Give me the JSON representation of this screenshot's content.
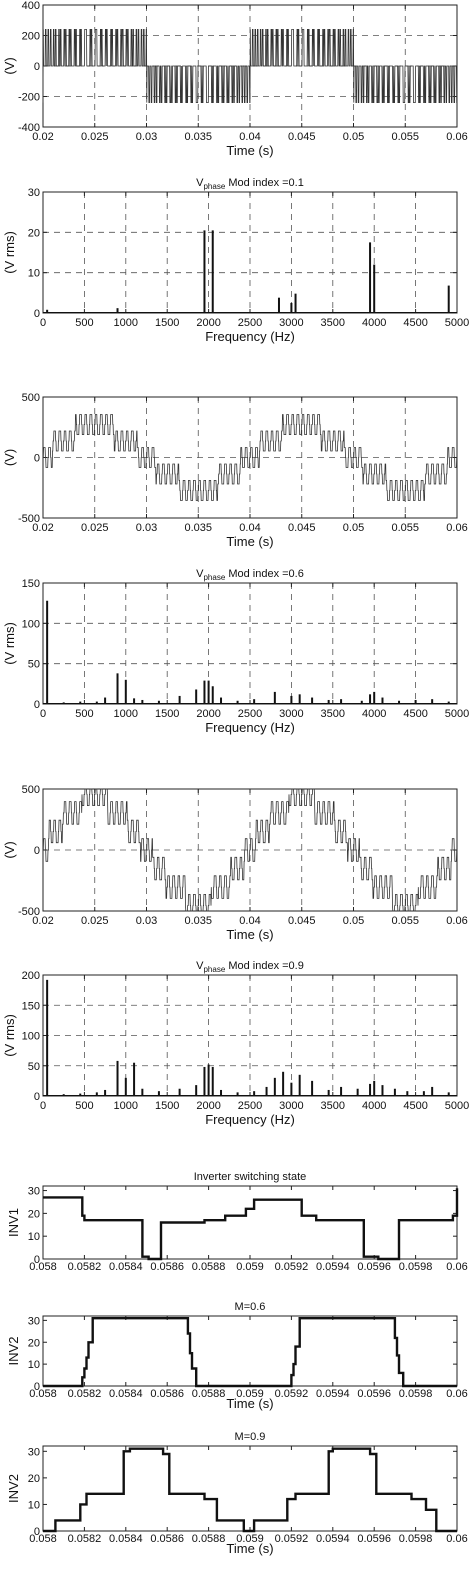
{
  "chart_data": [
    {
      "type": "line",
      "id": "w1",
      "title": "",
      "xlabel": "Time (s)",
      "ylabel": "(V)",
      "xlim": [
        0.02,
        0.06
      ],
      "ylim": [
        -400,
        400
      ],
      "xticks": [
        0.02,
        0.025,
        0.03,
        0.035,
        0.04,
        0.045,
        0.05,
        0.055,
        0.06
      ],
      "xtick_labels": [
        "0.02",
        "0.025",
        "0.03",
        "0.035",
        "0.04",
        "0.045",
        "0.05",
        "0.055",
        "0.06"
      ],
      "yticks": [
        -400,
        -200,
        0,
        200,
        400
      ],
      "ytick_labels": [
        "-400",
        "-200",
        "0",
        "200",
        "400"
      ],
      "grid": true,
      "series": [
        {
          "waveform": "pwm-phase-voltage",
          "fundamental_hz": 50,
          "mod_index": 0.1,
          "peak": 240
        }
      ]
    },
    {
      "type": "bar",
      "id": "s1",
      "title": "Mod index =0.1",
      "title_prefix": "V",
      "title_sub": "phase",
      "xlabel": "Frequency (Hz)",
      "ylabel": "(V rms)",
      "xlim": [
        0,
        5000
      ],
      "ylim": [
        0,
        30
      ],
      "xticks": [
        0,
        500,
        1000,
        1500,
        2000,
        2500,
        3000,
        3500,
        4000,
        4500,
        5000
      ],
      "xtick_labels": [
        "0",
        "500",
        "1000",
        "1500",
        "2000",
        "2500",
        "3000",
        "3500",
        "4000",
        "4500",
        "5000"
      ],
      "yticks": [
        0,
        10,
        20,
        30
      ],
      "ytick_labels": [
        "0",
        "10",
        "20",
        "30"
      ],
      "grid": true,
      "x": [
        50,
        900,
        1950,
        2050,
        2850,
        3000,
        3050,
        3950,
        4000,
        4900
      ],
      "values": [
        0.8,
        1.2,
        20.5,
        20.5,
        3.8,
        2.5,
        4.8,
        17.5,
        12,
        6.8
      ]
    },
    {
      "type": "line",
      "id": "w2",
      "title": "",
      "xlabel": "Time (s)",
      "ylabel": "(V)",
      "xlim": [
        0.02,
        0.06
      ],
      "ylim": [
        -500,
        500
      ],
      "xticks": [
        0.02,
        0.025,
        0.03,
        0.035,
        0.04,
        0.045,
        0.05,
        0.055,
        0.06
      ],
      "xtick_labels": [
        "0.02",
        "0.025",
        "0.03",
        "0.035",
        "0.04",
        "0.045",
        "0.05",
        "0.055",
        "0.06"
      ],
      "yticks": [
        -500,
        0,
        500
      ],
      "ytick_labels": [
        "-500",
        "0",
        "500"
      ],
      "grid": true,
      "series": [
        {
          "waveform": "pwm-phase-voltage",
          "fundamental_hz": 50,
          "mod_index": 0.6,
          "peak": 430
        }
      ]
    },
    {
      "type": "bar",
      "id": "s2",
      "title": "Mod index =0.6",
      "title_prefix": "V",
      "title_sub": "phase",
      "xlabel": "Frequency (Hz)",
      "ylabel": "(V rms)",
      "xlim": [
        0,
        5000
      ],
      "ylim": [
        0,
        150
      ],
      "xticks": [
        0,
        500,
        1000,
        1500,
        2000,
        2500,
        3000,
        3500,
        4000,
        4500,
        5000
      ],
      "xtick_labels": [
        "0",
        "500",
        "1000",
        "1500",
        "2000",
        "2500",
        "3000",
        "3500",
        "4000",
        "4500",
        "5000"
      ],
      "yticks": [
        0,
        50,
        100,
        150
      ],
      "ytick_labels": [
        "0",
        "50",
        "100",
        "150"
      ],
      "grid": true,
      "x": [
        50,
        250,
        450,
        650,
        750,
        900,
        1000,
        1100,
        1200,
        1400,
        1650,
        1850,
        1950,
        2000,
        2050,
        2150,
        2350,
        2550,
        2800,
        3000,
        3100,
        3250,
        3450,
        3600,
        3850,
        3950,
        4000,
        4100,
        4300,
        4500,
        4700,
        4900
      ],
      "values": [
        128,
        2,
        3,
        3,
        8,
        38,
        30,
        7,
        5,
        4,
        10,
        18,
        29,
        29,
        22,
        8,
        4,
        6,
        15,
        10,
        12,
        8,
        5,
        6,
        4,
        12,
        15,
        8,
        4,
        5,
        6,
        3
      ]
    },
    {
      "type": "line",
      "id": "w3",
      "title": "",
      "xlabel": "Time (s)",
      "ylabel": "(V)",
      "xlim": [
        0.02,
        0.06
      ],
      "ylim": [
        -500,
        500
      ],
      "xticks": [
        0.02,
        0.025,
        0.03,
        0.035,
        0.04,
        0.045,
        0.05,
        0.055,
        0.06
      ],
      "xtick_labels": [
        "0.02",
        "0.025",
        "0.03",
        "0.035",
        "0.04",
        "0.045",
        "0.05",
        "0.055",
        "0.06"
      ],
      "yticks": [
        -500,
        0,
        500
      ],
      "ytick_labels": [
        "-500",
        "0",
        "500"
      ],
      "grid": true,
      "series": [
        {
          "waveform": "pwm-phase-voltage",
          "fundamental_hz": 50,
          "mod_index": 0.9,
          "peak": 480
        }
      ]
    },
    {
      "type": "bar",
      "id": "s3",
      "title": "Mod index =0.9",
      "title_prefix": "V",
      "title_sub": "phase",
      "xlabel": "Frequency (Hz)",
      "ylabel": "(V rms)",
      "xlim": [
        0,
        5000
      ],
      "ylim": [
        0,
        200
      ],
      "xticks": [
        0,
        500,
        1000,
        1500,
        2000,
        2500,
        3000,
        3500,
        4000,
        4500,
        5000
      ],
      "xtick_labels": [
        "0",
        "500",
        "1000",
        "1500",
        "2000",
        "2500",
        "3000",
        "3500",
        "4000",
        "4500",
        "5000"
      ],
      "yticks": [
        0,
        50,
        100,
        150,
        200
      ],
      "ytick_labels": [
        "0",
        "50",
        "100",
        "150",
        "200"
      ],
      "grid": true,
      "x": [
        50,
        250,
        450,
        650,
        750,
        900,
        1000,
        1100,
        1200,
        1400,
        1650,
        1850,
        1950,
        2000,
        2050,
        2150,
        2350,
        2550,
        2700,
        2800,
        2900,
        3000,
        3100,
        3250,
        3450,
        3600,
        3800,
        3950,
        4000,
        4100,
        4250,
        4400,
        4600,
        4700,
        4900
      ],
      "values": [
        192,
        3,
        4,
        6,
        10,
        58,
        30,
        55,
        12,
        8,
        12,
        18,
        48,
        52,
        48,
        10,
        6,
        8,
        15,
        30,
        40,
        22,
        35,
        25,
        10,
        15,
        12,
        20,
        25,
        18,
        12,
        8,
        8,
        15,
        6
      ]
    },
    {
      "type": "line",
      "id": "i1",
      "title": "Inverter switching state",
      "xlabel": "",
      "ylabel": "INV1",
      "xlim": [
        0.058,
        0.06
      ],
      "ylim": [
        0,
        32
      ],
      "xticks": [
        0.058,
        0.0582,
        0.0584,
        0.0586,
        0.0588,
        0.059,
        0.0592,
        0.0594,
        0.0596,
        0.0598,
        0.06
      ],
      "xtick_labels": [
        "0.058",
        "0.0582",
        "0.0584",
        "0.0586",
        "0.0588",
        "0.059",
        "0.0592",
        "0.0594",
        "0.0596",
        "0.0598",
        "0.06"
      ],
      "yticks": [
        0,
        10,
        20,
        30
      ],
      "ytick_labels": [
        "0",
        "10",
        "20",
        "30"
      ],
      "grid": false,
      "series": [
        {
          "x": [
            0.058,
            0.05818,
            0.05819,
            0.0582,
            0.05848,
            0.05851,
            0.05857,
            0.05878,
            0.05888,
            0.05898,
            0.05902,
            0.05925,
            0.05932,
            0.05955,
            0.05962,
            0.05972,
            0.05998,
            0.06
          ],
          "y": [
            27,
            27,
            19,
            17,
            1,
            0,
            16,
            17,
            19,
            22,
            26,
            19,
            17,
            1,
            0,
            17,
            19,
            31
          ]
        }
      ]
    },
    {
      "type": "line",
      "id": "i2",
      "title": "M=0.6",
      "xlabel": "Time (s)",
      "ylabel": "INV2",
      "xlim": [
        0.058,
        0.06
      ],
      "ylim": [
        0,
        32
      ],
      "xticks": [
        0.058,
        0.0582,
        0.0584,
        0.0586,
        0.0588,
        0.059,
        0.0592,
        0.0594,
        0.0596,
        0.0598,
        0.06
      ],
      "xtick_labels": [
        "0.058",
        "0.0582",
        "0.0584",
        "0.0586",
        "0.0588",
        "0.059",
        "0.0592",
        "0.0594",
        "0.0596",
        "0.0598",
        "0.06"
      ],
      "yticks": [
        0,
        10,
        20,
        30
      ],
      "ytick_labels": [
        "0",
        "10",
        "20",
        "30"
      ],
      "grid": false,
      "series": [
        {
          "x": [
            0.058,
            0.05818,
            0.05819,
            0.0582,
            0.05821,
            0.05822,
            0.05824,
            0.05868,
            0.0587,
            0.05871,
            0.05872,
            0.05874,
            0.05918,
            0.0592,
            0.05921,
            0.05922,
            0.05924,
            0.05968,
            0.0597,
            0.05971,
            0.05972,
            0.05974,
            0.06
          ],
          "y": [
            0,
            0,
            4,
            8,
            13,
            20,
            31,
            31,
            24,
            15,
            8,
            0,
            0,
            5,
            10,
            18,
            31,
            31,
            22,
            14,
            6,
            0,
            0
          ]
        }
      ]
    },
    {
      "type": "line",
      "id": "i3",
      "title": "M=0.9",
      "xlabel": "Time (s)",
      "ylabel": "INV2",
      "xlim": [
        0.058,
        0.06
      ],
      "ylim": [
        0,
        32
      ],
      "xticks": [
        0.058,
        0.0582,
        0.0584,
        0.0586,
        0.0588,
        0.059,
        0.0592,
        0.0594,
        0.0596,
        0.0598,
        0.06
      ],
      "xtick_labels": [
        "0.058",
        "0.0582",
        "0.0584",
        "0.0586",
        "0.0588",
        "0.059",
        "0.0592",
        "0.0594",
        "0.0596",
        "0.0598",
        "0.06"
      ],
      "yticks": [
        0,
        10,
        20,
        30
      ],
      "ytick_labels": [
        "0",
        "10",
        "20",
        "30"
      ],
      "grid": false,
      "series": [
        {
          "x": [
            0.058,
            0.05806,
            0.05818,
            0.05821,
            0.05839,
            0.05842,
            0.05858,
            0.05861,
            0.05878,
            0.05884,
            0.05897,
            0.05902,
            0.05918,
            0.05922,
            0.05938,
            0.0594,
            0.05958,
            0.05961,
            0.05978,
            0.05985,
            0.0599,
            0.06
          ],
          "y": [
            0,
            4,
            10,
            14,
            30,
            31,
            29,
            14,
            12,
            4,
            0,
            4,
            12,
            14,
            30,
            31,
            29,
            14,
            12,
            8,
            0,
            0
          ]
        }
      ]
    }
  ]
}
